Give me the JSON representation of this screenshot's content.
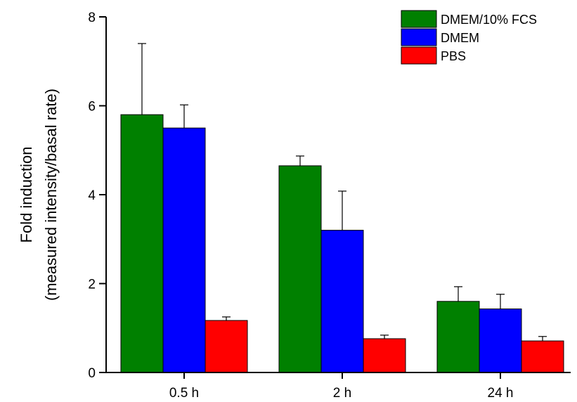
{
  "chart_data": {
    "type": "bar",
    "title": "",
    "xlabel": "",
    "ylabel_line1": "Fold induction",
    "ylabel_line2": "(measured intensity/basal rate)",
    "categories": [
      "0.5 h",
      "2 h",
      "24 h"
    ],
    "ylim": [
      0,
      8
    ],
    "yticks": [
      0,
      2,
      4,
      6,
      8
    ],
    "grid": false,
    "legend_position": "top-right",
    "series": [
      {
        "name": "DMEM/10% FCS",
        "color": "#008000",
        "values": [
          5.8,
          4.65,
          1.6
        ],
        "errors": [
          1.6,
          0.22,
          0.33
        ]
      },
      {
        "name": "DMEM",
        "color": "#0000ff",
        "values": [
          5.5,
          3.2,
          1.43
        ],
        "errors": [
          0.52,
          0.88,
          0.33
        ]
      },
      {
        "name": "PBS",
        "color": "#ff0000",
        "values": [
          1.17,
          0.76,
          0.71
        ],
        "errors": [
          0.08,
          0.08,
          0.1
        ]
      }
    ]
  }
}
